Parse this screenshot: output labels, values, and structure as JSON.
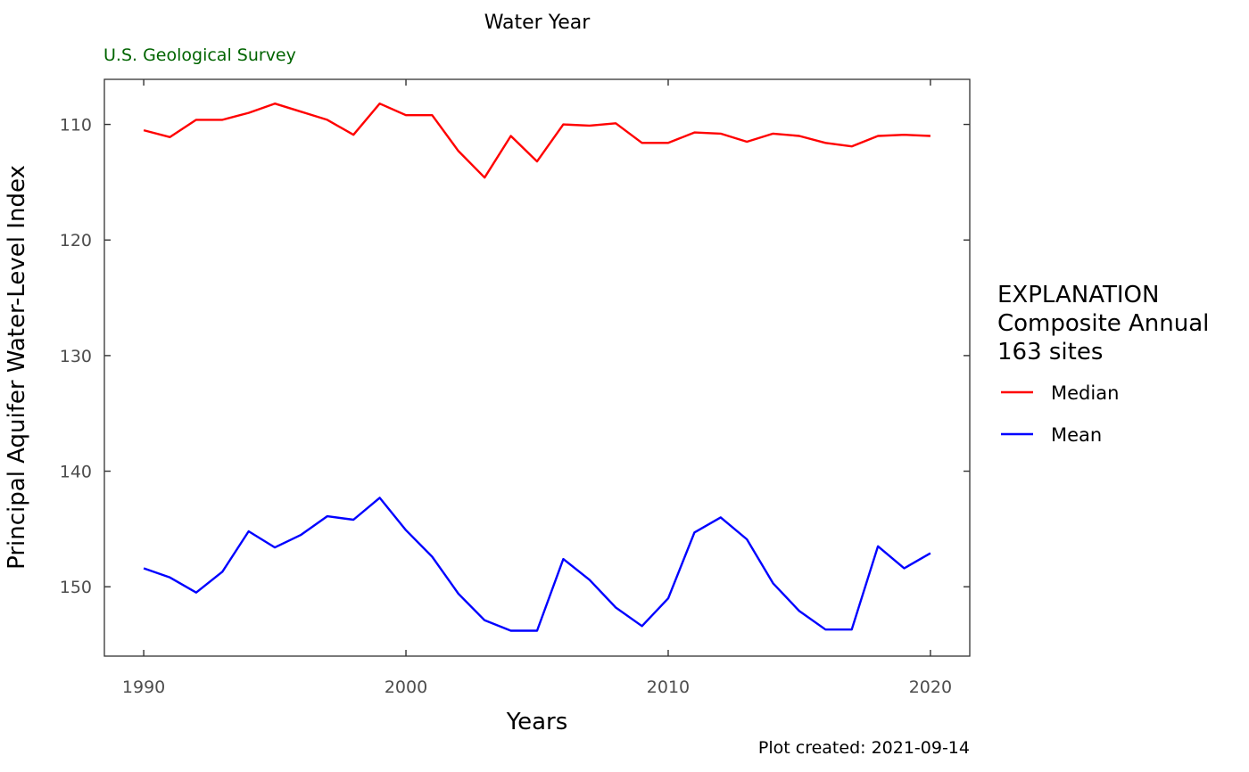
{
  "chart_data": {
    "type": "line",
    "title": "Water Year",
    "subtitle": "U.S. Geological Survey",
    "xlabel": "Years",
    "ylabel": "Principal Aquifer Water-Level Index",
    "caption": "Plot created: 2021-09-14",
    "xlim": [
      1988.5,
      2021.5
    ],
    "ylim": [
      106.1,
      156.0
    ],
    "y_reversed": true,
    "x_ticks": [
      1990,
      2000,
      2010,
      2020
    ],
    "x_tick_labels": [
      "1990",
      "2000",
      "2010",
      "2020"
    ],
    "y_ticks": [
      110,
      120,
      130,
      140,
      150
    ],
    "y_tick_labels": [
      "110",
      "120",
      "130",
      "140",
      "150"
    ],
    "grid": false,
    "legend": {
      "placement": "right",
      "title_lines": [
        "EXPLANATION",
        "Composite Annual",
        "163 sites"
      ]
    },
    "series": [
      {
        "name": "Median",
        "color": "#ff0000",
        "x": [
          1990,
          1991,
          1992,
          1993,
          1994,
          1995,
          1996,
          1997,
          1998,
          1999,
          2000,
          2001,
          2002,
          2003,
          2004,
          2005,
          2006,
          2007,
          2008,
          2009,
          2010,
          2011,
          2012,
          2013,
          2014,
          2015,
          2016,
          2017,
          2018,
          2019,
          2020
        ],
        "values": [
          110.5,
          111.1,
          109.6,
          109.6,
          109.0,
          108.2,
          108.9,
          109.6,
          110.9,
          108.2,
          109.2,
          109.2,
          112.3,
          114.6,
          111.0,
          113.2,
          110.0,
          110.1,
          109.9,
          111.6,
          111.6,
          110.7,
          110.8,
          111.5,
          110.8,
          111.0,
          111.6,
          111.9,
          111.0,
          110.9,
          111.0
        ]
      },
      {
        "name": "Mean",
        "color": "#0000ff",
        "x": [
          1990,
          1991,
          1992,
          1993,
          1994,
          1995,
          1996,
          1997,
          1998,
          1999,
          2000,
          2001,
          2002,
          2003,
          2004,
          2005,
          2006,
          2007,
          2008,
          2009,
          2010,
          2011,
          2012,
          2013,
          2014,
          2015,
          2016,
          2017,
          2018,
          2019,
          2020
        ],
        "values": [
          148.4,
          149.2,
          150.5,
          148.7,
          145.2,
          146.6,
          145.5,
          143.9,
          144.2,
          142.3,
          145.1,
          147.4,
          150.6,
          152.9,
          153.8,
          153.8,
          147.6,
          149.4,
          151.8,
          153.4,
          151.0,
          145.3,
          144.0,
          145.9,
          149.7,
          152.1,
          153.7,
          153.7,
          146.5,
          148.4,
          147.1
        ]
      }
    ]
  }
}
